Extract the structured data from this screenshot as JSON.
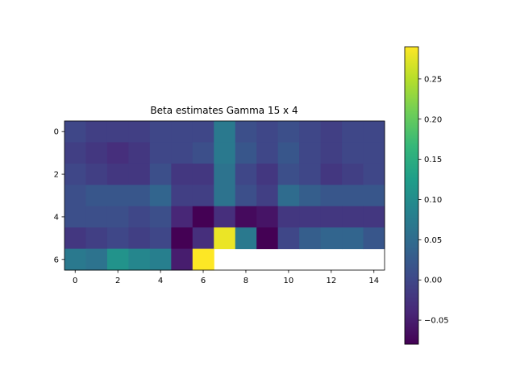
{
  "chart_data": {
    "type": "heatmap",
    "title": "Beta estimates Gamma 15 x 4",
    "colormap": "viridis",
    "nrows": 7,
    "ncols": 15,
    "values": [
      [
        0.0,
        -0.01,
        -0.01,
        -0.01,
        0.0,
        0.0,
        0.0,
        0.07,
        0.01,
        0.0,
        0.01,
        0.0,
        -0.01,
        0.0,
        0.0
      ],
      [
        -0.01,
        -0.02,
        -0.03,
        -0.02,
        0.0,
        0.0,
        0.01,
        0.07,
        0.02,
        0.0,
        0.02,
        0.0,
        -0.01,
        0.0,
        0.0
      ],
      [
        0.0,
        -0.01,
        -0.02,
        -0.02,
        0.01,
        -0.02,
        -0.02,
        0.06,
        0.0,
        -0.02,
        0.01,
        0.0,
        -0.02,
        -0.01,
        0.0
      ],
      [
        0.01,
        0.02,
        0.02,
        0.02,
        0.04,
        -0.01,
        -0.01,
        0.06,
        0.01,
        -0.01,
        0.05,
        0.03,
        0.02,
        0.02,
        0.02
      ],
      [
        0.01,
        0.01,
        0.01,
        0.0,
        0.01,
        -0.04,
        -0.08,
        -0.03,
        -0.07,
        -0.06,
        -0.02,
        -0.02,
        -0.02,
        -0.02,
        -0.02
      ],
      [
        -0.02,
        -0.01,
        0.0,
        -0.01,
        0.0,
        -0.08,
        -0.03,
        0.28,
        0.07,
        -0.08,
        0.0,
        0.03,
        0.04,
        0.04,
        0.02
      ],
      [
        0.07,
        0.06,
        0.11,
        0.09,
        0.08,
        -0.05,
        0.29,
        null,
        null,
        null,
        null,
        null,
        null,
        null,
        null
      ]
    ],
    "vmin": -0.08,
    "vmax": 0.29,
    "xticks": [
      "0",
      "2",
      "4",
      "6",
      "8",
      "10",
      "12",
      "14"
    ],
    "yticks": [
      "0",
      "2",
      "4",
      "6"
    ],
    "colorbar_ticks": [
      "0.25",
      "0.20",
      "0.15",
      "0.10",
      "0.05",
      "0.00",
      "−0.05"
    ]
  }
}
